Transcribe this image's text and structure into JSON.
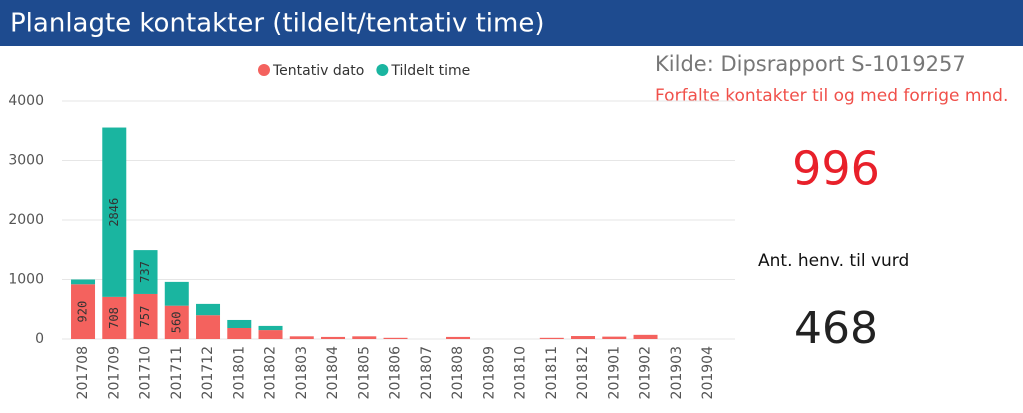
{
  "header": {
    "title": "Planlagte kontakter (tildelt/tentativ time)"
  },
  "cards": {
    "source": "Kilde: Dipsrapport S-1019257",
    "overdue_label": "Forfalte kontakter til og med forrige mnd.",
    "overdue_value": "996",
    "referrals_label": "Ant. henv. til vurd",
    "referrals_value": "468"
  },
  "chart_data": {
    "type": "stacked-bar",
    "categories": [
      "201708",
      "201709",
      "201710",
      "201711",
      "201712",
      "201801",
      "201802",
      "201803",
      "201804",
      "201805",
      "201806",
      "201807",
      "201808",
      "201809",
      "201810",
      "201811",
      "201812",
      "201901",
      "201902",
      "201903",
      "201904"
    ],
    "series": [
      {
        "name": "Tentativ dato",
        "color": "#f4625e",
        "values": [
          920,
          708,
          757,
          560,
          400,
          185,
          150,
          45,
          35,
          45,
          20,
          0,
          35,
          0,
          0,
          20,
          50,
          40,
          70,
          0,
          0
        ],
        "value_labels": [
          "920",
          "708",
          "757",
          "560",
          null,
          null,
          null,
          null,
          null,
          null,
          null,
          null,
          null,
          null,
          null,
          null,
          null,
          null,
          null,
          null,
          null
        ]
      },
      {
        "name": "Tildelt time",
        "color": "#1ab5a0",
        "values": [
          80,
          2846,
          737,
          400,
          190,
          135,
          70,
          0,
          0,
          0,
          0,
          0,
          0,
          0,
          0,
          0,
          0,
          0,
          0,
          0,
          0
        ],
        "value_labels": [
          null,
          "2846",
          "737",
          null,
          null,
          null,
          null,
          null,
          null,
          null,
          null,
          null,
          null,
          null,
          null,
          null,
          null,
          null,
          null,
          null,
          null
        ]
      }
    ],
    "ylim": [
      0,
      4000
    ],
    "yticks": [
      0,
      1000,
      2000,
      3000,
      4000
    ],
    "grid": true
  }
}
